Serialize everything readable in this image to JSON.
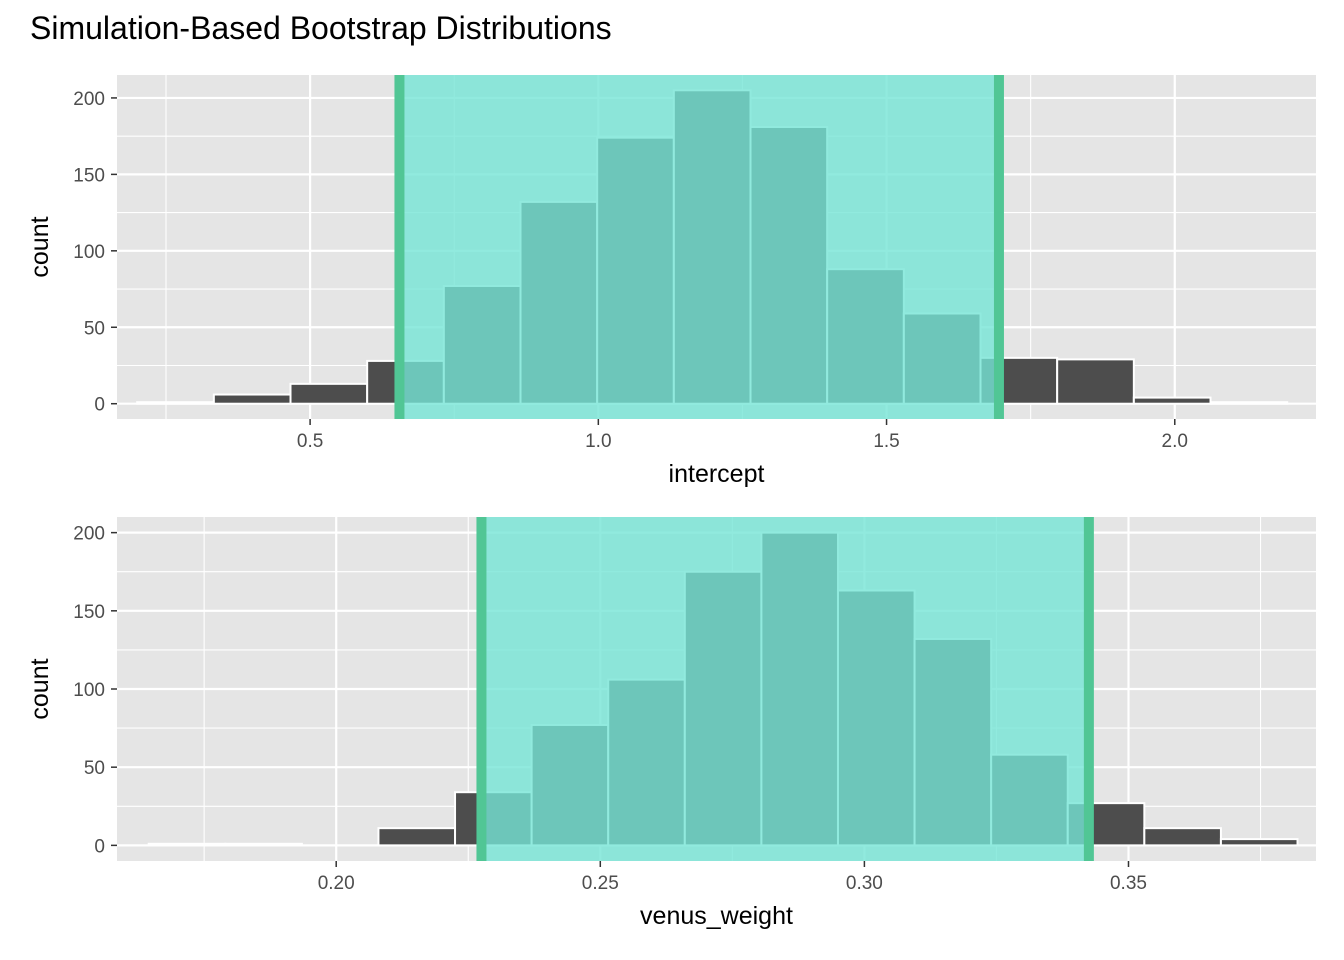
{
  "chart_data": [
    {
      "type": "bar",
      "title": "Simulation-Based Bootstrap Distributions",
      "xlabel": "intercept",
      "ylabel": "count",
      "xlim": [
        0.165,
        2.245
      ],
      "ylim": [
        -10,
        215
      ],
      "x_ticks": [
        0.5,
        1.0,
        1.5,
        2.0
      ],
      "x_tick_labels": [
        "0.5",
        "1.0",
        "1.5",
        "2.0"
      ],
      "y_ticks": [
        0,
        50,
        100,
        150,
        200
      ],
      "y_tick_labels": [
        "0",
        "50",
        "100",
        "150",
        "200"
      ],
      "bin_edges": [
        0.2,
        0.333,
        0.466,
        0.599,
        0.732,
        0.865,
        0.998,
        1.131,
        1.264,
        1.397,
        1.53,
        1.663,
        1.796,
        1.929,
        2.062,
        2.195
      ],
      "values": [
        1,
        6,
        13,
        28,
        77,
        132,
        174,
        205,
        181,
        88,
        59,
        30,
        29,
        4,
        1
      ],
      "ci": [
        0.655,
        1.695
      ],
      "grid": true,
      "colors": {
        "bar": "#4d4d4d",
        "bar_border": "#ffffff",
        "ci_fill": "#76e5d6",
        "ci_line": "#51c695",
        "panel": "#e5e5e5"
      }
    },
    {
      "type": "bar",
      "xlabel": "venus_weight",
      "ylabel": "count",
      "xlim": [
        0.1585,
        0.3855
      ],
      "ylim": [
        -10,
        210
      ],
      "x_ticks": [
        0.2,
        0.25,
        0.3,
        0.35
      ],
      "x_tick_labels": [
        "0.20",
        "0.25",
        "0.30",
        "0.35"
      ],
      "y_ticks": [
        0,
        50,
        100,
        150,
        200
      ],
      "y_tick_labels": [
        "0",
        "50",
        "100",
        "150",
        "200"
      ],
      "bin_edges": [
        0.1645,
        0.179,
        0.1935,
        0.208,
        0.2225,
        0.237,
        0.2515,
        0.266,
        0.2805,
        0.295,
        0.3095,
        0.324,
        0.3385,
        0.353,
        0.3675,
        0.382
      ],
      "values": [
        1,
        1,
        0,
        11,
        34,
        77,
        106,
        175,
        200,
        163,
        132,
        58,
        27,
        11,
        4
      ],
      "ci": [
        0.2275,
        0.3425
      ],
      "grid": true,
      "colors": {
        "bar": "#4d4d4d",
        "bar_border": "#ffffff",
        "ci_fill": "#76e5d6",
        "ci_line": "#51c695",
        "panel": "#e5e5e5"
      }
    }
  ]
}
